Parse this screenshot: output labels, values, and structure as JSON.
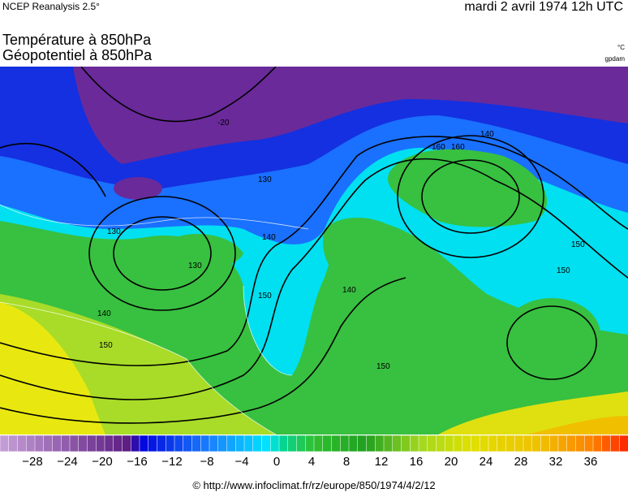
{
  "header": {
    "source": "NCEP Reanalysis 2.5°",
    "date": "mardi 2 avril 1974 12h UTC",
    "title_lines": [
      "Température à 850hPa",
      "Géopotentiel à 850hPa"
    ],
    "units": [
      "°C",
      "gpdam"
    ]
  },
  "contour_labels": [
    "-20",
    "130",
    "140",
    "150",
    "160",
    "130",
    "140",
    "150",
    "140",
    "150",
    "160",
    "150",
    "150",
    "140",
    "130"
  ],
  "colorbar": {
    "ticks": [
      "−28",
      "−24",
      "−20",
      "−16",
      "−12",
      "−8",
      "−4",
      "0",
      "4",
      "8",
      "12",
      "16",
      "20",
      "24",
      "28",
      "32",
      "36"
    ]
  },
  "footer": "© http://www.infoclimat.fr/rz/europe/850/1974/4/2/12"
}
